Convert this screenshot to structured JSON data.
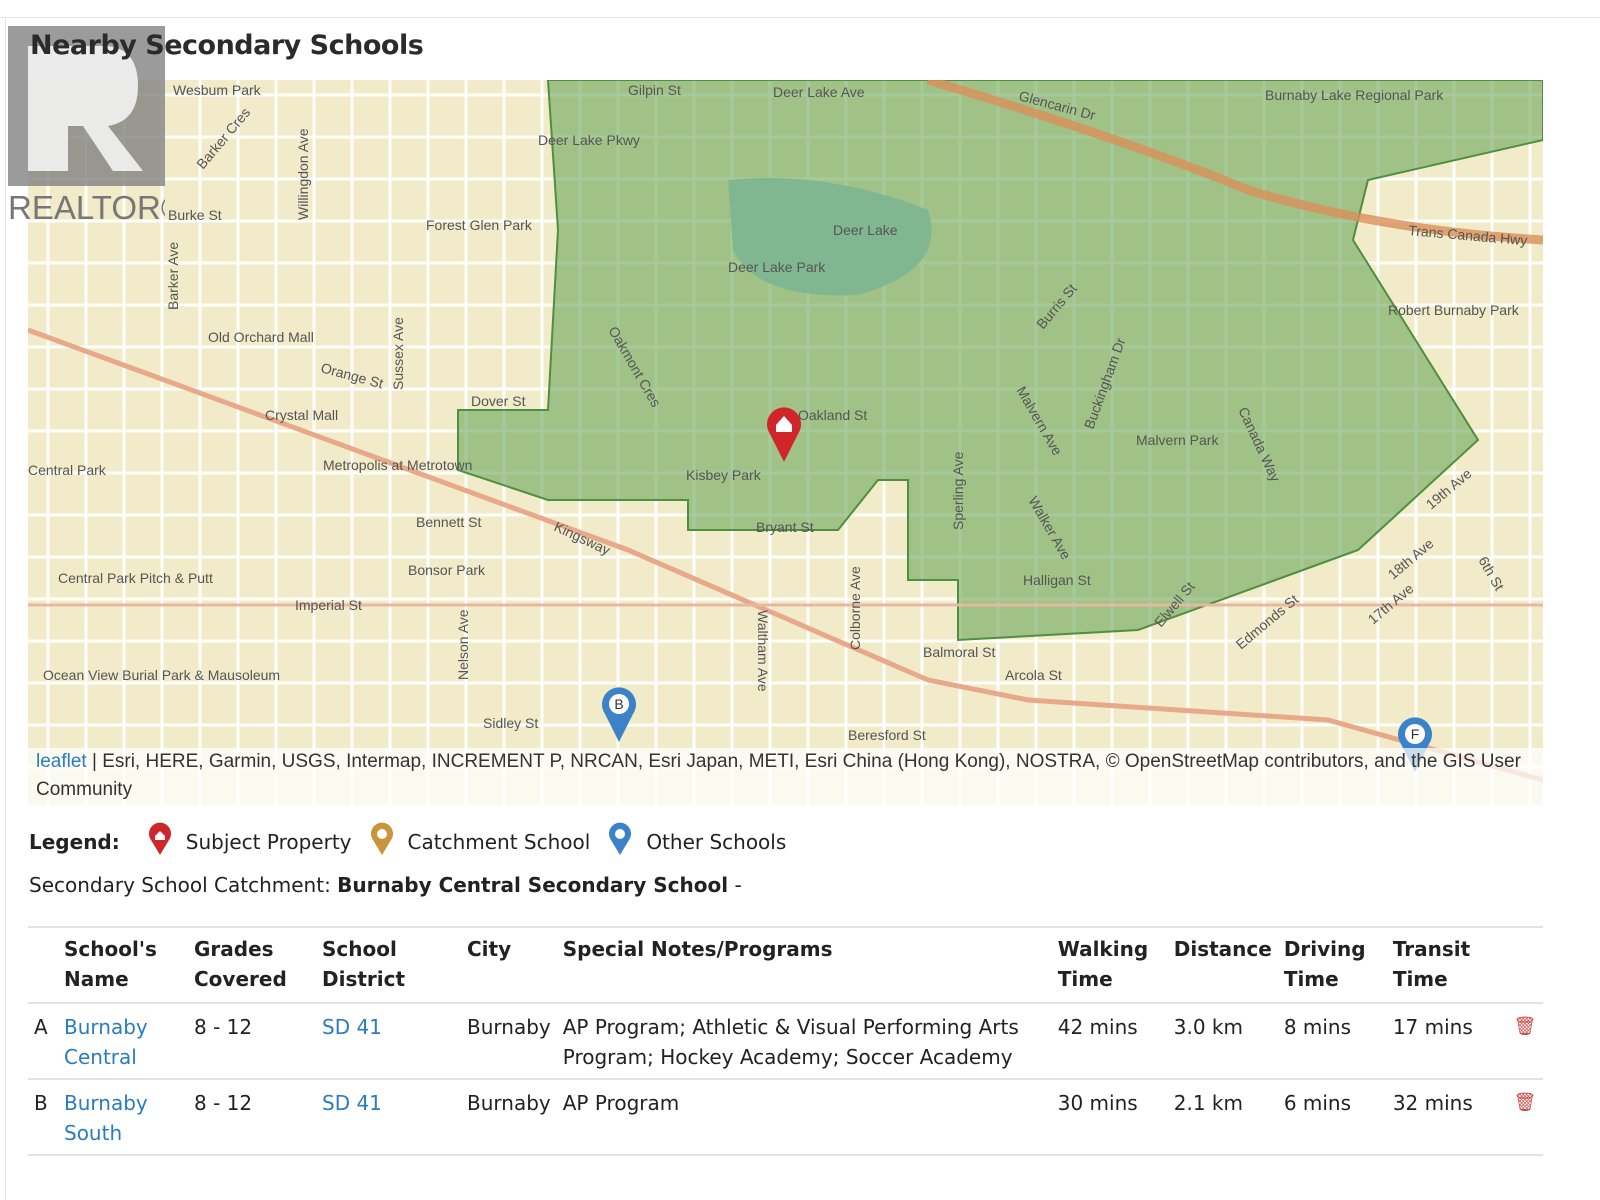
{
  "title": "Nearby Secondary Schools",
  "logo": {
    "text": "REALTOR®"
  },
  "map": {
    "labels": [
      "Wesbum Park",
      "Burke St",
      "Willingdon Ave",
      "Barker Cres",
      "Forest Glen Park",
      "Deer Lake Pkwy",
      "Gilpin St",
      "Deer Lake Ave",
      "Glencarin Dr",
      "Deer Lake",
      "Deer Lake Park",
      "Trans Canada Hwy",
      "Robert Burnaby Park",
      "Burnaby Lake Regional Park",
      "Burris St",
      "Buckingham Dr",
      "Malvern Ave",
      "Malvern Park",
      "Canada Way",
      "Oakmont Cres",
      "Oakland St",
      "Dover St",
      "Orange St",
      "Sussex Ave",
      "Old Orchard Mall",
      "Crystal Mall",
      "Metropolis at Metrotown",
      "Central Park",
      "Bennett St",
      "Kingsway",
      "Kisbey Park",
      "Bryant St",
      "Sperling Ave",
      "Walker Ave",
      "Halligan St",
      "Imperial St",
      "Colborne Ave",
      "Waltham Ave",
      "Bonsor Park",
      "Central Park Pitch & Putt",
      "Balmoral St",
      "Arcola St",
      "Elwell St",
      "Edmonds St",
      "19th Ave",
      "18th Ave",
      "17th Ave",
      "6th St",
      "Ocean View Burial Park & Mausoleum",
      "Nelson Ave",
      "Sidley St",
      "Beresford St",
      "Barker Ave"
    ],
    "markers": [
      {
        "letter": "B",
        "type": "other-school",
        "color": "#3b82c9"
      },
      {
        "letter": "F",
        "type": "other-school",
        "color": "#3b82c9"
      },
      {
        "letter": "",
        "type": "subject-property",
        "color": "#d0262a"
      }
    ],
    "attribution_link": "leaflet",
    "attribution": " | Esri, HERE, Garmin, USGS, Intermap, INCREMENT P, NRCAN, Esri Japan, METI, Esri China (Hong Kong), NOSTRA, © OpenStreetMap contributors, and the GIS User Community",
    "catchment_color": "#5fa04e"
  },
  "legend": {
    "label": "Legend:",
    "items": [
      {
        "label": "Subject Property",
        "color": "#d0262a"
      },
      {
        "label": "Catchment School",
        "color": "#c8943c"
      },
      {
        "label": "Other Schools",
        "color": "#3b82c9"
      }
    ]
  },
  "catchment": {
    "prefix": "Secondary School Catchment: ",
    "school": "Burnaby Central Secondary School",
    "suffix": " -"
  },
  "table": {
    "headers": [
      "",
      "School's Name",
      "Grades Covered",
      "School District",
      "City",
      "Special Notes/Programs",
      "Walking Time",
      "Distance",
      "Driving Time",
      "Transit Time",
      ""
    ],
    "rows": [
      {
        "letter": "A",
        "name": "Burnaby Central",
        "grades": "8 - 12",
        "district": "SD 41",
        "city": "Burnaby",
        "notes": "AP Program; Athletic & Visual Performing Arts Program; Hockey Academy; Soccer Academy",
        "walking": "42 mins",
        "distance": "3.0 km",
        "driving": "8 mins",
        "transit": "17 mins"
      },
      {
        "letter": "B",
        "name": "Burnaby South",
        "grades": "8 - 12",
        "district": "SD 41",
        "city": "Burnaby",
        "notes": "AP Program",
        "walking": "30 mins",
        "distance": "2.1 km",
        "driving": "6 mins",
        "transit": "32 mins"
      }
    ]
  }
}
